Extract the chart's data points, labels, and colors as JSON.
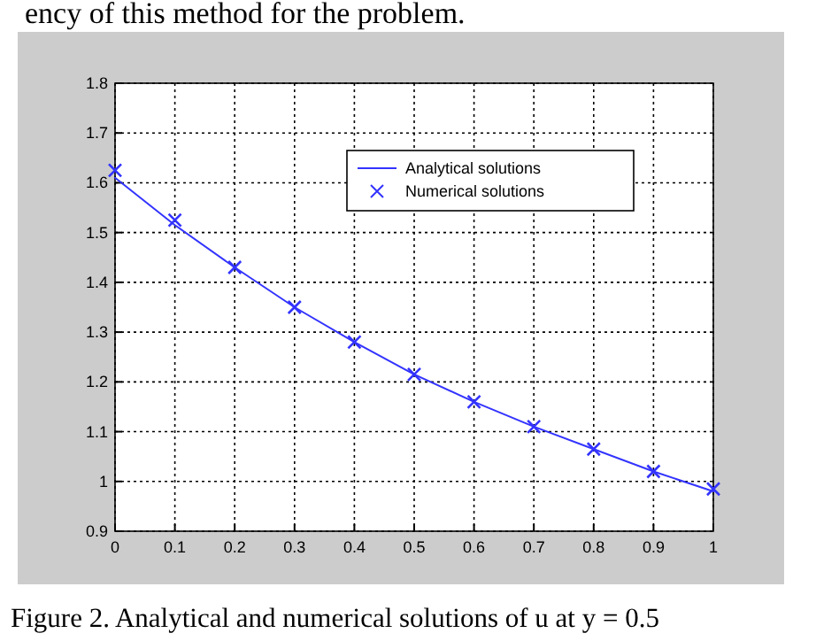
{
  "chart_data": {
    "type": "line",
    "x": [
      0,
      0.1,
      0.2,
      0.3,
      0.4,
      0.5,
      0.6,
      0.7,
      0.8,
      0.9,
      1
    ],
    "series": [
      {
        "name": "Analytical solutions",
        "color": "#3333ff",
        "line_style": "solid",
        "marker": "none",
        "values": [
          1.61,
          1.515,
          1.43,
          1.35,
          1.28,
          1.215,
          1.16,
          1.11,
          1.065,
          1.02,
          0.98
        ]
      },
      {
        "name": "Numerical solutions",
        "type": "scatter",
        "color": "#3333ff",
        "marker": "cross",
        "values": [
          1.625,
          1.525,
          1.43,
          1.35,
          1.28,
          1.215,
          1.16,
          1.11,
          1.065,
          1.02,
          0.985
        ]
      }
    ],
    "xlim": [
      0,
      1
    ],
    "xticks": [
      0,
      0.1,
      0.2,
      0.3,
      0.4,
      0.5,
      0.6,
      0.7,
      0.8,
      0.9,
      1
    ],
    "ylim": [
      0.9,
      1.8
    ],
    "yticks": [
      0.9,
      1,
      1.1,
      1.2,
      1.3,
      1.4,
      1.5,
      1.6,
      1.7,
      1.8
    ],
    "grid": true,
    "legend": "top right",
    "annotations": [
      "ency of this method for the problem.",
      "Figure 2.   Analytical and numerical solutions of u at y = 0.5"
    ]
  }
}
